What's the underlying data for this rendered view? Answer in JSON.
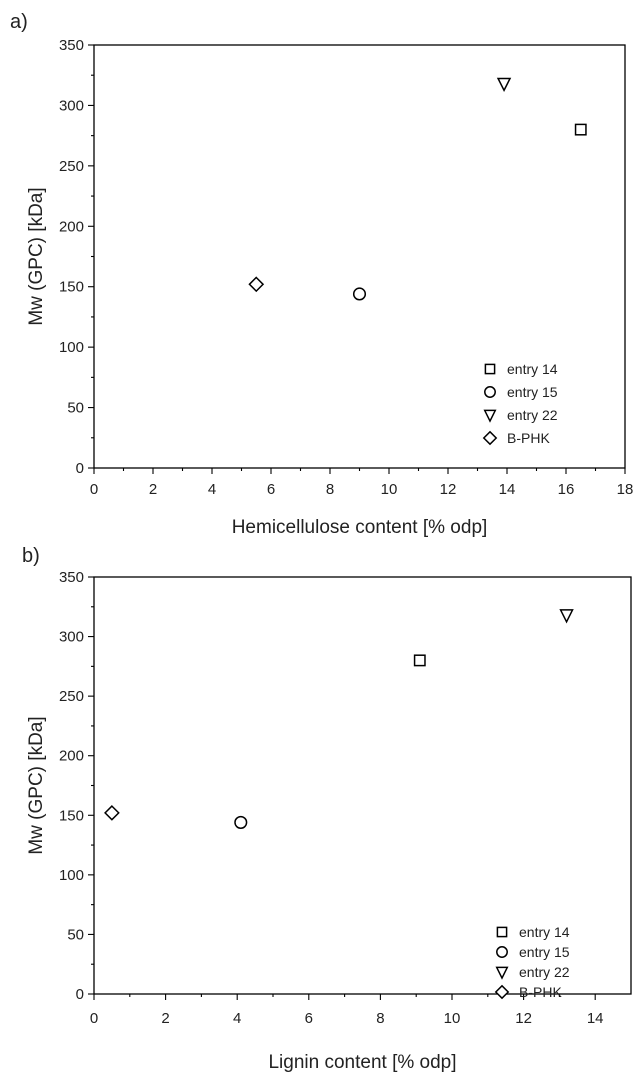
{
  "chart_data": [
    {
      "panel_label": "a)",
      "type": "scatter",
      "xlabel": "Hemicellulose content [% odp]",
      "ylabel": "Mw (GPC) [kDa]",
      "xlim": [
        0,
        18
      ],
      "ylim": [
        0,
        350
      ],
      "xticks": [
        0,
        2,
        4,
        6,
        8,
        10,
        12,
        14,
        16,
        18
      ],
      "yticks": [
        0,
        50,
        100,
        150,
        200,
        250,
        300,
        350
      ],
      "legend_position": "bottom-right",
      "grid": false,
      "series": [
        {
          "name": "entry 14",
          "marker": "square",
          "points": [
            {
              "x": 16.5,
              "y": 280
            }
          ]
        },
        {
          "name": "entry 15",
          "marker": "circle",
          "points": [
            {
              "x": 9.0,
              "y": 144
            }
          ]
        },
        {
          "name": "entry 22",
          "marker": "triangle-down",
          "points": [
            {
              "x": 13.9,
              "y": 318
            }
          ]
        },
        {
          "name": "B-PHK",
          "marker": "diamond",
          "points": [
            {
              "x": 5.5,
              "y": 152
            }
          ]
        }
      ]
    },
    {
      "panel_label": "b)",
      "type": "scatter",
      "xlabel": "Lignin content [% odp]",
      "ylabel": "Mw (GPC) [kDa]",
      "xlim": [
        0,
        15
      ],
      "ylim": [
        0,
        350
      ],
      "xticks": [
        0,
        2,
        4,
        6,
        8,
        10,
        12,
        14
      ],
      "yticks": [
        0,
        50,
        100,
        150,
        200,
        250,
        300,
        350
      ],
      "legend_position": "bottom-right",
      "grid": false,
      "series": [
        {
          "name": "entry 14",
          "marker": "square",
          "points": [
            {
              "x": 9.1,
              "y": 280
            }
          ]
        },
        {
          "name": "entry 15",
          "marker": "circle",
          "points": [
            {
              "x": 4.1,
              "y": 144
            }
          ]
        },
        {
          "name": "entry 22",
          "marker": "triangle-down",
          "points": [
            {
              "x": 13.2,
              "y": 318
            }
          ]
        },
        {
          "name": "B-PHK",
          "marker": "diamond",
          "points": [
            {
              "x": 0.5,
              "y": 152
            }
          ]
        }
      ]
    }
  ]
}
